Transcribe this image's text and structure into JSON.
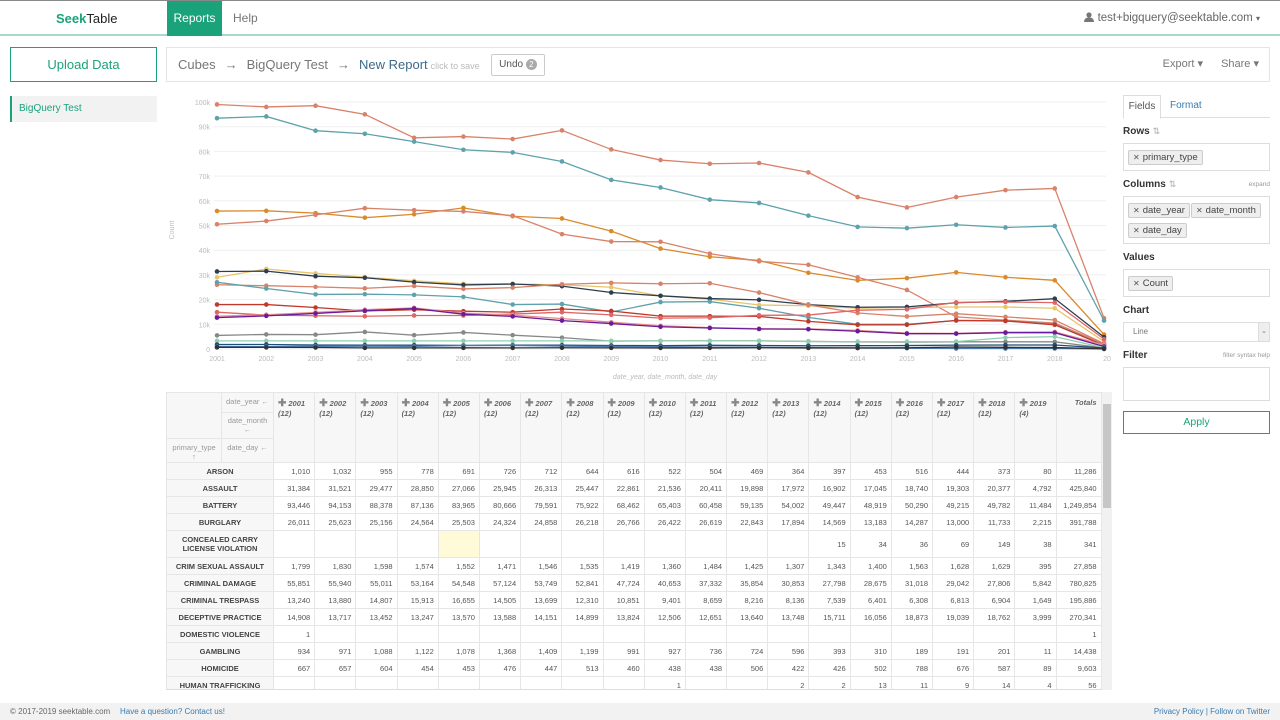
{
  "nav": {
    "logo_a": "Seek",
    "logo_b": "Table",
    "reports": "Reports",
    "help": "Help",
    "user": "test+bigquery@seektable.com",
    "user_caret": "▾",
    "user_icon": "user-icon"
  },
  "sidebar": {
    "upload": "Upload Data",
    "items": [
      {
        "label": "BigQuery Test"
      }
    ]
  },
  "breadcrumb": {
    "cubes": "Cubes",
    "arrow": "→",
    "cube": "BigQuery Test",
    "report": "New Report",
    "hint": "click to save",
    "undo": "Undo",
    "undo_count": "2",
    "export": "Export ▾",
    "share": "Share ▾"
  },
  "panel": {
    "tabs": [
      "Fields",
      "Format"
    ],
    "rows_label": "Rows",
    "rows": [
      "primary_type"
    ],
    "columns_label": "Columns",
    "expand": "expand",
    "columns": [
      "date_year",
      "date_month",
      "date_day"
    ],
    "values_label": "Values",
    "values": [
      "Count"
    ],
    "chart_label": "Chart",
    "chart_type": "Line",
    "filter_label": "Filter",
    "filter_help": "filter syntax help",
    "filter_value": "",
    "apply": "Apply"
  },
  "chart_data": {
    "type": "line",
    "ylabel": "Count",
    "xlabel": "date_year, date_month, date_day",
    "x": [
      "2001",
      "2002",
      "2003",
      "2004",
      "2005",
      "2006",
      "2007",
      "2008",
      "2009",
      "2010",
      "2011",
      "2012",
      "2013",
      "2014",
      "2015",
      "2016",
      "2017",
      "2018",
      "2019"
    ],
    "x_tick_labels": [
      "2001",
      "2002",
      "2003",
      "2004",
      "2005",
      "2006",
      "2007",
      "2008",
      "2009",
      "2010",
      "2011",
      "2012",
      "2013",
      "2014",
      "2015",
      "2016",
      "2017",
      "2018",
      "20"
    ],
    "y_ticks": [
      "0",
      "10k",
      "20k",
      "30k",
      "40k",
      "50k",
      "60k",
      "70k",
      "80k",
      "90k",
      "100k"
    ],
    "ylim": [
      0,
      100000
    ],
    "grid": true,
    "series": [
      {
        "color": "#d9826a",
        "values": [
          99000,
          98000,
          98500,
          95000,
          85500,
          86000,
          85000,
          88500,
          80800,
          76500,
          75000,
          75300,
          71500,
          61500,
          57300,
          61500,
          64300,
          65000,
          12500
        ]
      },
      {
        "color": "#5fa2ab",
        "values": [
          93446,
          94153,
          88378,
          87136,
          83965,
          80666,
          79591,
          75922,
          68462,
          65403,
          60458,
          59135,
          54002,
          49447,
          48919,
          50290,
          49215,
          49782,
          11484
        ]
      },
      {
        "color": "#d98a2b",
        "values": [
          55851,
          55940,
          55011,
          53164,
          54548,
          57124,
          53749,
          52841,
          47724,
          40653,
          37332,
          35854,
          30853,
          27798,
          28675,
          31018,
          29042,
          27806,
          5842
        ]
      },
      {
        "color": "#d9826a",
        "values": [
          50500,
          51800,
          54300,
          57000,
          56200,
          55700,
          54000,
          46500,
          43500,
          43400,
          38600,
          35500,
          34100,
          29000,
          23900,
          13000,
          11700,
          10500,
          2000
        ]
      },
      {
        "color": "#e9c46a",
        "values": [
          29000,
          32400,
          30600,
          29100,
          27600,
          26400,
          26300,
          26000,
          25000,
          21500,
          20200,
          17800,
          17500,
          16500,
          16800,
          17000,
          17000,
          16500,
          3000
        ]
      },
      {
        "color": "#2d3e50",
        "values": [
          31384,
          31521,
          29477,
          28850,
          27066,
          25945,
          26313,
          25447,
          22861,
          21536,
          20411,
          19898,
          17972,
          16902,
          17045,
          18740,
          19303,
          20377,
          4792
        ]
      },
      {
        "color": "#d9826a",
        "values": [
          26011,
          25623,
          25156,
          24564,
          25503,
          24324,
          24858,
          26218,
          26766,
          26422,
          26619,
          22843,
          17894,
          14569,
          13183,
          14287,
          13000,
          11733,
          2215
        ]
      },
      {
        "color": "#5fa2ab",
        "values": [
          27000,
          24500,
          22100,
          22200,
          21900,
          21100,
          18000,
          18200,
          15000,
          19000,
          19200,
          16500,
          12800,
          10000,
          10000,
          11500,
          11300,
          10000,
          1500
        ]
      },
      {
        "color": "#c0392b",
        "values": [
          18000,
          18000,
          16800,
          15400,
          15900,
          15300,
          14900,
          16200,
          15400,
          13300,
          13300,
          13200,
          11200,
          9800,
          9800,
          11600,
          11400,
          9800,
          1500
        ]
      },
      {
        "color": "#e06666",
        "values": [
          14908,
          13717,
          13452,
          13247,
          13570,
          13588,
          14151,
          14899,
          13824,
          12506,
          12651,
          13640,
          13748,
          15711,
          16056,
          18873,
          19039,
          18762,
          3999
        ]
      },
      {
        "color": "#e88a8a",
        "values": [
          13240,
          13880,
          14807,
          15913,
          16655,
          14505,
          13699,
          12310,
          10851,
          9401,
          8659,
          8216,
          8136,
          7539,
          6401,
          6308,
          6813,
          6904,
          1649
        ]
      },
      {
        "color": "#6a1b9a",
        "values": [
          12700,
          13400,
          14400,
          15500,
          16400,
          14100,
          13200,
          11500,
          10300,
          9000,
          8500,
          8100,
          8000,
          7200,
          6200,
          6200,
          6600,
          6600,
          1000
        ]
      },
      {
        "color": "#888888",
        "values": [
          5500,
          5900,
          5800,
          6900,
          5600,
          6700,
          5600,
          4600,
          3200,
          3300,
          3300,
          3300,
          3100,
          2900,
          2800,
          2900,
          2900,
          2900,
          400
        ]
      },
      {
        "color": "#8fcfb0",
        "values": [
          3300,
          3300,
          3300,
          3300,
          3300,
          3300,
          3300,
          3300,
          3300,
          3300,
          3300,
          3300,
          3000,
          3000,
          3000,
          3000,
          4600,
          5000,
          500
        ]
      },
      {
        "color": "#1f4e79",
        "values": [
          1799,
          1830,
          1598,
          1574,
          1552,
          1471,
          1546,
          1535,
          1419,
          1360,
          1484,
          1425,
          1307,
          1343,
          1400,
          1563,
          1628,
          1629,
          395
        ]
      },
      {
        "color": "#4a7ab0",
        "values": [
          934,
          971,
          1088,
          1122,
          1078,
          1368,
          1409,
          1199,
          991,
          927,
          736,
          724,
          596,
          393,
          310,
          189,
          191,
          201,
          11
        ]
      },
      {
        "color": "#333333",
        "values": [
          667,
          657,
          604,
          454,
          453,
          476,
          447,
          513,
          460,
          438,
          438,
          506,
          422,
          426,
          502,
          788,
          676,
          587,
          89
        ]
      }
    ]
  },
  "table": {
    "corner": {
      "date_year": "date_year ←",
      "date_month": "date_month ←",
      "date_day": "date_day ←",
      "primary_type": "primary_type ↑"
    },
    "columns": [
      {
        "year": "2001",
        "count": "(12)"
      },
      {
        "year": "2002",
        "count": "(12)"
      },
      {
        "year": "2003",
        "count": "(12)"
      },
      {
        "year": "2004",
        "count": "(12)"
      },
      {
        "year": "2005",
        "count": "(12)"
      },
      {
        "year": "2006",
        "count": "(12)"
      },
      {
        "year": "2007",
        "count": "(12)"
      },
      {
        "year": "2008",
        "count": "(12)"
      },
      {
        "year": "2009",
        "count": "(12)"
      },
      {
        "year": "2010",
        "count": "(12)"
      },
      {
        "year": "2011",
        "count": "(12)"
      },
      {
        "year": "2012",
        "count": "(12)"
      },
      {
        "year": "2013",
        "count": "(12)"
      },
      {
        "year": "2014",
        "count": "(12)"
      },
      {
        "year": "2015",
        "count": "(12)"
      },
      {
        "year": "2016",
        "count": "(12)"
      },
      {
        "year": "2017",
        "count": "(12)"
      },
      {
        "year": "2018",
        "count": "(12)"
      },
      {
        "year": "2019",
        "count": "(4)"
      }
    ],
    "totals_label": "Totals",
    "rows": [
      {
        "label": "ARSON",
        "cells": [
          "1,010",
          "1,032",
          "955",
          "778",
          "691",
          "726",
          "712",
          "644",
          "616",
          "522",
          "504",
          "469",
          "364",
          "397",
          "453",
          "516",
          "444",
          "373",
          "80"
        ],
        "total": "11,286"
      },
      {
        "label": "ASSAULT",
        "cells": [
          "31,384",
          "31,521",
          "29,477",
          "28,850",
          "27,066",
          "25,945",
          "26,313",
          "25,447",
          "22,861",
          "21,536",
          "20,411",
          "19,898",
          "17,972",
          "16,902",
          "17,045",
          "18,740",
          "19,303",
          "20,377",
          "4,792"
        ],
        "total": "425,840"
      },
      {
        "label": "BATTERY",
        "cells": [
          "93,446",
          "94,153",
          "88,378",
          "87,136",
          "83,965",
          "80,666",
          "79,591",
          "75,922",
          "68,462",
          "65,403",
          "60,458",
          "59,135",
          "54,002",
          "49,447",
          "48,919",
          "50,290",
          "49,215",
          "49,782",
          "11,484"
        ],
        "total": "1,249,854"
      },
      {
        "label": "BURGLARY",
        "cells": [
          "26,011",
          "25,623",
          "25,156",
          "24,564",
          "25,503",
          "24,324",
          "24,858",
          "26,218",
          "26,766",
          "26,422",
          "26,619",
          "22,843",
          "17,894",
          "14,569",
          "13,183",
          "14,287",
          "13,000",
          "11,733",
          "2,215"
        ],
        "total": "391,788"
      },
      {
        "label": "CONCEALED CARRY LICENSE VIOLATION",
        "cells": [
          "",
          "",
          "",
          "",
          "",
          "",
          "",
          "",
          "",
          "",
          "",
          "",
          "",
          "15",
          "34",
          "36",
          "69",
          "149",
          "38"
        ],
        "total": "341"
      },
      {
        "label": "CRIM SEXUAL ASSAULT",
        "cells": [
          "1,799",
          "1,830",
          "1,598",
          "1,574",
          "1,552",
          "1,471",
          "1,546",
          "1,535",
          "1,419",
          "1,360",
          "1,484",
          "1,425",
          "1,307",
          "1,343",
          "1,400",
          "1,563",
          "1,628",
          "1,629",
          "395"
        ],
        "total": "27,858"
      },
      {
        "label": "CRIMINAL DAMAGE",
        "cells": [
          "55,851",
          "55,940",
          "55,011",
          "53,164",
          "54,548",
          "57,124",
          "53,749",
          "52,841",
          "47,724",
          "40,653",
          "37,332",
          "35,854",
          "30,853",
          "27,798",
          "28,675",
          "31,018",
          "29,042",
          "27,806",
          "5,842"
        ],
        "total": "780,825"
      },
      {
        "label": "CRIMINAL TRESPASS",
        "cells": [
          "13,240",
          "13,880",
          "14,807",
          "15,913",
          "16,655",
          "14,505",
          "13,699",
          "12,310",
          "10,851",
          "9,401",
          "8,659",
          "8,216",
          "8,136",
          "7,539",
          "6,401",
          "6,308",
          "6,813",
          "6,904",
          "1,649"
        ],
        "total": "195,886"
      },
      {
        "label": "DECEPTIVE PRACTICE",
        "cells": [
          "14,908",
          "13,717",
          "13,452",
          "13,247",
          "13,570",
          "13,588",
          "14,151",
          "14,899",
          "13,824",
          "12,506",
          "12,651",
          "13,640",
          "13,748",
          "15,711",
          "16,056",
          "18,873",
          "19,039",
          "18,762",
          "3,999"
        ],
        "total": "270,341"
      },
      {
        "label": "DOMESTIC VIOLENCE",
        "cells": [
          "1",
          "",
          "",
          "",
          "",
          "",
          "",
          "",
          "",
          "",
          "",
          "",
          "",
          "",
          "",
          "",
          "",
          "",
          ""
        ],
        "total": "1"
      },
      {
        "label": "GAMBLING",
        "cells": [
          "934",
          "971",
          "1,088",
          "1,122",
          "1,078",
          "1,368",
          "1,409",
          "1,199",
          "991",
          "927",
          "736",
          "724",
          "596",
          "393",
          "310",
          "189",
          "191",
          "201",
          "11"
        ],
        "total": "14,438"
      },
      {
        "label": "HOMICIDE",
        "cells": [
          "667",
          "657",
          "604",
          "454",
          "453",
          "476",
          "447",
          "513",
          "460",
          "438",
          "438",
          "506",
          "422",
          "426",
          "502",
          "788",
          "676",
          "587",
          "89"
        ],
        "total": "9,603"
      },
      {
        "label": "HUMAN TRAFFICKING",
        "cells": [
          "",
          "",
          "",
          "",
          "",
          "",
          "",
          "",
          "",
          "1",
          "",
          "",
          "2",
          "2",
          "13",
          "11",
          "9",
          "14",
          "4"
        ],
        "total": "56"
      }
    ]
  },
  "footer": {
    "copyright": "© 2017-2019 seektable.com",
    "contact": "Have a question? Contact us!",
    "links": "Privacy Policy | Follow on Twitter"
  }
}
